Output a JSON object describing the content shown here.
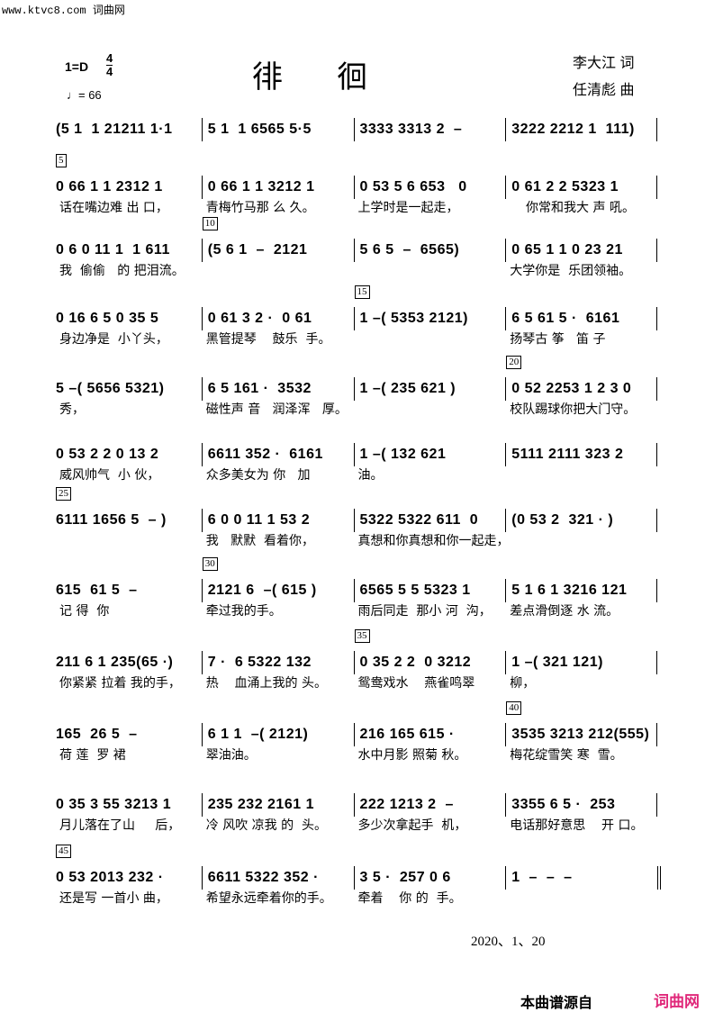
{
  "watermark": "www.ktvc8.com 词曲网",
  "header": {
    "key": "1=D",
    "time_top": "4",
    "time_bottom": "4",
    "tempo": "♩= 66",
    "title": "徘徊",
    "lyricist": "李大江  词",
    "composer": "任清彪  曲"
  },
  "systems": [
    {
      "measures": [
        {
          "notes": "(5 1  1 21211 1·1",
          "lyric": ""
        },
        {
          "notes": "5 1  1 6565 5·5",
          "lyric": ""
        },
        {
          "notes": "3333 3313 2  –",
          "lyric": ""
        },
        {
          "notes": "3222 2212 1  111)",
          "lyric": ""
        }
      ]
    },
    {
      "measures": [
        {
          "number": "5",
          "notes": "0 66 1 1 2312 1",
          "lyric": "话在嘴边难 出 口，"
        },
        {
          "notes": "0 66 1 1 3212 1",
          "lyric": "青梅竹马那 么 久。"
        },
        {
          "notes": "0 53 5 6 653   0",
          "lyric": "上学时是一起走，"
        },
        {
          "notes": "0 61 2 2 5323 1",
          "lyric": "    你常和我大 声 吼。"
        }
      ]
    },
    {
      "measures": [
        {
          "notes": "0 6 0 11 1  1 611",
          "lyric": "我  偷偷   的 把泪流。"
        },
        {
          "number": "10",
          "notes": "(5 6 1  –  2121",
          "lyric": ""
        },
        {
          "notes": "5 6 5  –  6565)",
          "lyric": ""
        },
        {
          "notes": "0 65 1 1 0 23 21",
          "lyric": "大学你是  乐团领袖。"
        }
      ]
    },
    {
      "measures": [
        {
          "notes": "0 16 6 5 0 35 5",
          "lyric": "身边净是  小丫头，"
        },
        {
          "notes": "0 61 3 2 ·  0 61",
          "lyric": "黑管提琴    鼓乐  手。"
        },
        {
          "number": "15",
          "notes": "1 –( 5353 2121)",
          "lyric": ""
        },
        {
          "notes": "6 5 61 5 ·  6161",
          "lyric": "扬琴古 筝   笛 子"
        }
      ]
    },
    {
      "measures": [
        {
          "notes": "5 –( 5656 5321)",
          "lyric": "秀，"
        },
        {
          "notes": "6 5 161 ·  3532",
          "lyric": "磁性声 音   润泽浑   厚。"
        },
        {
          "notes": "1 –( 235 621 )",
          "lyric": ""
        },
        {
          "number": "20",
          "notes": "0 52 2253 1 2 3 0",
          "lyric": "校队踢球你把大门守。"
        }
      ]
    },
    {
      "measures": [
        {
          "notes": "0 53 2 2 0 13 2",
          "lyric": "威风帅气  小 伙，"
        },
        {
          "notes": "6611 352 ·  6161",
          "lyric": "众多美女为 你   加"
        },
        {
          "notes": "1 –( 132 621",
          "lyric": "油。"
        },
        {
          "notes": "5111 2111 323 2",
          "lyric": ""
        }
      ]
    },
    {
      "measures": [
        {
          "number": "25",
          "notes": "6111 1656 5  – )",
          "lyric": ""
        },
        {
          "notes": "6 0 0 11 1 53 2",
          "lyric": "我   默默  看着你，"
        },
        {
          "notes": "5322 5322 611  0",
          "lyric": "真想和你真想和你一起走，"
        },
        {
          "notes": "(0 53 2  321 · )",
          "lyric": ""
        }
      ]
    },
    {
      "measures": [
        {
          "notes": "615  61 5  –",
          "lyric": "记 得  你"
        },
        {
          "number": "30",
          "notes": "2121 6  –( 615 )",
          "lyric": "牵过我的手。"
        },
        {
          "notes": "6565 5 5 5323 1",
          "lyric": "雨后同走  那小 河  沟，"
        },
        {
          "notes": "5 1 6 1 3216 121",
          "lyric": "差点滑倒逐 水 流。"
        }
      ]
    },
    {
      "measures": [
        {
          "notes": "211 6 1 235(65 ·)",
          "lyric": "你紧紧 拉着 我的手，"
        },
        {
          "notes": "7 ·  6 5322 132",
          "lyric": "热    血涌上我的 头。"
        },
        {
          "number": "35",
          "notes": "0 35 2 2  0 3212",
          "lyric": "鸳鸯戏水    燕雀鸣翠"
        },
        {
          "notes": "1 –( 321 121)",
          "lyric": "柳，"
        }
      ]
    },
    {
      "measures": [
        {
          "notes": "165  26 5  –",
          "lyric": "荷 莲  罗 裙"
        },
        {
          "notes": "6 1 1  –( 2121)",
          "lyric": "翠油油。"
        },
        {
          "notes": "216 165 615 ·",
          "lyric": "水中月影 照菊 秋。"
        },
        {
          "number": "40",
          "notes": "3535 3213 212(555)",
          "lyric": "梅花绽雪笑 寒  雪。"
        }
      ]
    },
    {
      "measures": [
        {
          "notes": "0 35 3 55 3213 1",
          "lyric": "月儿落在了山     后，"
        },
        {
          "notes": "235 232 2161 1",
          "lyric": "冷 风吹 凉我 的  头。"
        },
        {
          "notes": "222 1213 2  –",
          "lyric": "多少次拿起手  机，"
        },
        {
          "notes": "3355 6 5 ·  253",
          "lyric": "电话那好意思    开 口。"
        }
      ]
    },
    {
      "measures": [
        {
          "number": "45",
          "notes": "0 53 2013 232 ·",
          "lyric": "还是写 一首小 曲，"
        },
        {
          "notes": "6611 5322 352 ·",
          "lyric": "希望永远牵着你的手。"
        },
        {
          "notes": "3 5 ·  257 0 6",
          "lyric": "牵着    你 的  手。"
        },
        {
          "notes": "1  –  –  –",
          "lyric": "",
          "final": true
        }
      ]
    }
  ],
  "date": "2020、1、20",
  "footer": {
    "source_label": "本曲谱源自",
    "brand": "词曲网",
    "brand_color": "#e0287a"
  }
}
